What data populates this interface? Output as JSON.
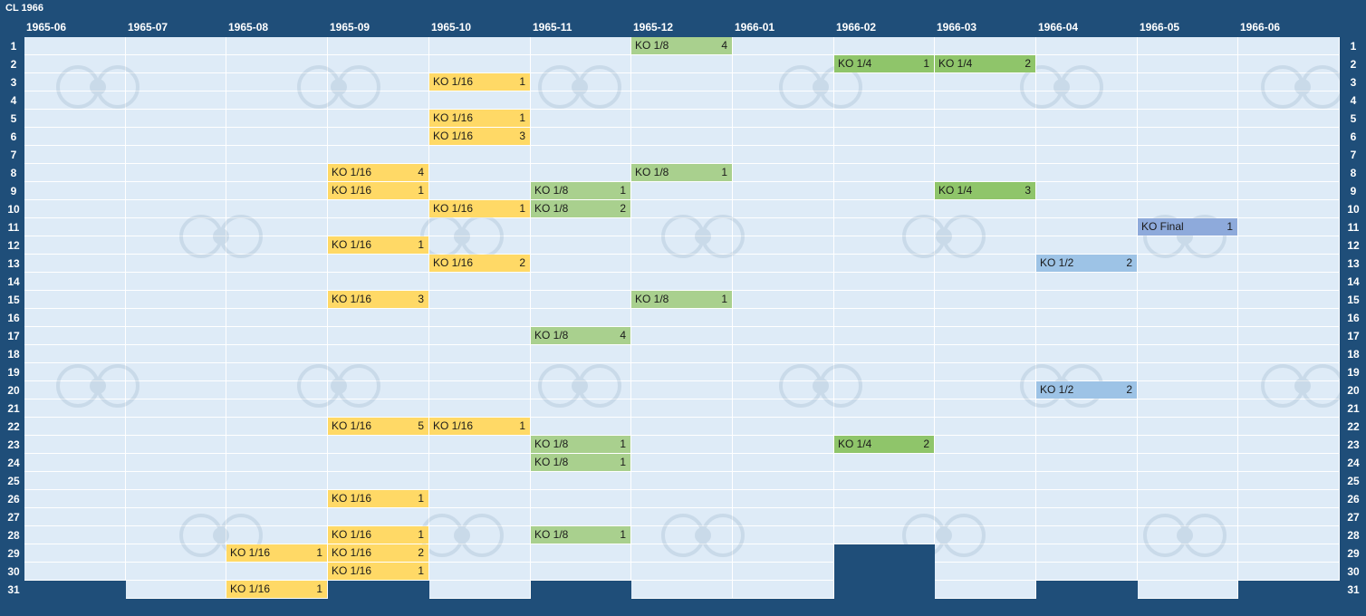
{
  "title": "CL 1966",
  "months": [
    "1965-06",
    "1965-07",
    "1965-08",
    "1965-09",
    "1965-10",
    "1965-11",
    "1965-12",
    "1966-01",
    "1966-02",
    "1966-03",
    "1966-04",
    "1966-05",
    "1966-06"
  ],
  "days": [
    "1",
    "2",
    "3",
    "4",
    "5",
    "6",
    "7",
    "8",
    "9",
    "10",
    "11",
    "12",
    "13",
    "14",
    "15",
    "16",
    "17",
    "18",
    "19",
    "20",
    "21",
    "22",
    "23",
    "24",
    "25",
    "26",
    "27",
    "28",
    "29",
    "30",
    "31"
  ],
  "month_day_counts": [
    30,
    31,
    31,
    30,
    31,
    30,
    31,
    31,
    28,
    31,
    30,
    31,
    30
  ],
  "colors": {
    "background": "#1f4e79",
    "cell": "#deebf7",
    "KO 1/16": "#ffd966",
    "KO 1/8": "#a9d08e",
    "KO 1/4": "#8fc56a",
    "KO 1/2": "#9dc3e6",
    "KO Final": "#8eaadb"
  },
  "events": [
    {
      "month": 6,
      "day": 1,
      "stage": "KO 1/8",
      "count": "4"
    },
    {
      "month": 8,
      "day": 2,
      "stage": "KO 1/4",
      "count": "1"
    },
    {
      "month": 9,
      "day": 2,
      "stage": "KO 1/4",
      "count": "2"
    },
    {
      "month": 4,
      "day": 3,
      "stage": "KO 1/16",
      "count": "1"
    },
    {
      "month": 4,
      "day": 5,
      "stage": "KO 1/16",
      "count": "1"
    },
    {
      "month": 4,
      "day": 6,
      "stage": "KO 1/16",
      "count": "3"
    },
    {
      "month": 3,
      "day": 8,
      "stage": "KO 1/16",
      "count": "4"
    },
    {
      "month": 6,
      "day": 8,
      "stage": "KO 1/8",
      "count": "1"
    },
    {
      "month": 3,
      "day": 9,
      "stage": "KO 1/16",
      "count": "1"
    },
    {
      "month": 5,
      "day": 9,
      "stage": "KO 1/8",
      "count": "1"
    },
    {
      "month": 9,
      "day": 9,
      "stage": "KO 1/4",
      "count": "3"
    },
    {
      "month": 4,
      "day": 10,
      "stage": "KO 1/16",
      "count": "1"
    },
    {
      "month": 5,
      "day": 10,
      "stage": "KO 1/8",
      "count": "2"
    },
    {
      "month": 11,
      "day": 11,
      "stage": "KO Final",
      "count": "1"
    },
    {
      "month": 3,
      "day": 12,
      "stage": "KO 1/16",
      "count": "1"
    },
    {
      "month": 4,
      "day": 13,
      "stage": "KO 1/16",
      "count": "2"
    },
    {
      "month": 10,
      "day": 13,
      "stage": "KO 1/2",
      "count": "2"
    },
    {
      "month": 3,
      "day": 15,
      "stage": "KO 1/16",
      "count": "3"
    },
    {
      "month": 6,
      "day": 15,
      "stage": "KO 1/8",
      "count": "1"
    },
    {
      "month": 5,
      "day": 17,
      "stage": "KO 1/8",
      "count": "4"
    },
    {
      "month": 10,
      "day": 20,
      "stage": "KO 1/2",
      "count": "2"
    },
    {
      "month": 3,
      "day": 22,
      "stage": "KO 1/16",
      "count": "5"
    },
    {
      "month": 4,
      "day": 22,
      "stage": "KO 1/16",
      "count": "1"
    },
    {
      "month": 5,
      "day": 23,
      "stage": "KO 1/8",
      "count": "1"
    },
    {
      "month": 8,
      "day": 23,
      "stage": "KO 1/4",
      "count": "2"
    },
    {
      "month": 5,
      "day": 24,
      "stage": "KO 1/8",
      "count": "1"
    },
    {
      "month": 3,
      "day": 26,
      "stage": "KO 1/16",
      "count": "1"
    },
    {
      "month": 3,
      "day": 28,
      "stage": "KO 1/16",
      "count": "1"
    },
    {
      "month": 5,
      "day": 28,
      "stage": "KO 1/8",
      "count": "1"
    },
    {
      "month": 2,
      "day": 29,
      "stage": "KO 1/16",
      "count": "1"
    },
    {
      "month": 3,
      "day": 29,
      "stage": "KO 1/16",
      "count": "2"
    },
    {
      "month": 3,
      "day": 30,
      "stage": "KO 1/16",
      "count": "1"
    },
    {
      "month": 2,
      "day": 31,
      "stage": "KO 1/16",
      "count": "1"
    }
  ]
}
